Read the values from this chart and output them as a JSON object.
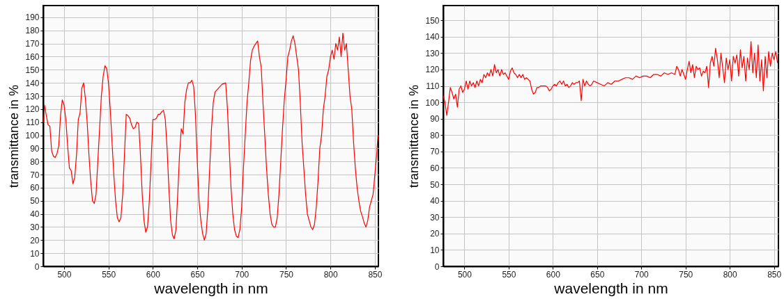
{
  "chart_data": [
    {
      "type": "line",
      "xlabel": "wavelength in nm",
      "ylabel": "transmittance in %",
      "color": "#ff0000",
      "grid": true,
      "xlim": [
        476.5,
        854
      ],
      "ylim": [
        0,
        199
      ],
      "xticks": [
        500,
        550,
        600,
        650,
        700,
        750,
        800,
        850
      ],
      "yticks": [
        0,
        10,
        20,
        30,
        40,
        50,
        60,
        70,
        80,
        90,
        100,
        110,
        120,
        130,
        140,
        150,
        160,
        170,
        180,
        190
      ],
      "x": [
        477,
        478,
        480,
        482,
        484,
        486,
        488,
        490,
        492,
        494,
        496,
        498,
        500,
        502,
        504,
        506,
        508,
        510,
        512,
        514,
        516,
        518,
        520,
        522,
        524,
        526,
        528,
        530,
        532,
        534,
        536,
        538,
        540,
        542,
        544,
        546,
        548,
        550,
        552,
        554,
        556,
        558,
        560,
        562,
        564,
        566,
        568,
        570,
        572,
        574,
        576,
        578,
        580,
        582,
        584,
        586,
        588,
        590,
        592,
        594,
        596,
        598,
        600,
        602,
        604,
        606,
        608,
        610,
        612,
        614,
        616,
        618,
        620,
        622,
        624,
        626,
        628,
        630,
        632,
        634,
        636,
        638,
        640,
        642,
        644,
        646,
        648,
        650,
        652,
        654,
        656,
        658,
        660,
        662,
        664,
        666,
        668,
        670,
        674,
        678,
        682,
        684,
        686,
        688,
        690,
        692,
        694,
        696,
        698,
        700,
        702,
        704,
        706,
        708,
        710,
        712,
        714,
        716,
        718,
        720,
        722,
        724,
        726,
        728,
        730,
        732,
        734,
        736,
        738,
        740,
        742,
        744,
        746,
        748,
        750,
        752,
        754,
        756,
        758,
        760,
        762,
        764,
        766,
        768,
        770,
        772,
        774,
        776,
        778,
        780,
        782,
        784,
        786,
        788,
        790,
        792,
        794,
        796,
        798,
        800,
        802,
        804,
        806,
        808,
        810,
        812,
        814,
        816,
        818,
        820,
        822,
        824,
        826,
        828,
        830,
        832,
        834,
        836,
        838,
        840,
        842,
        844,
        846,
        848,
        850,
        852,
        853.5
      ],
      "values": [
        110,
        123,
        115,
        108,
        107,
        88,
        84,
        83,
        86,
        92,
        115,
        127,
        123,
        112,
        92,
        75,
        73,
        63,
        68,
        85,
        112,
        117,
        136,
        140,
        128,
        110,
        85,
        65,
        50,
        48,
        55,
        80,
        105,
        130,
        145,
        153,
        151,
        140,
        120,
        95,
        70,
        50,
        37,
        34,
        37,
        55,
        85,
        116,
        115,
        113,
        108,
        105,
        106,
        110,
        109,
        85,
        55,
        35,
        26,
        30,
        50,
        80,
        112,
        112,
        113,
        116,
        116,
        118,
        119,
        112,
        90,
        60,
        35,
        24,
        21,
        28,
        55,
        85,
        105,
        101,
        125,
        135,
        140,
        140,
        142,
        137,
        115,
        80,
        50,
        35,
        25,
        20,
        25,
        45,
        75,
        105,
        125,
        133,
        136,
        139,
        140,
        120,
        90,
        60,
        40,
        28,
        23,
        22,
        28,
        45,
        75,
        100,
        125,
        140,
        157,
        165,
        168,
        170,
        172,
        160,
        152,
        125,
        100,
        75,
        55,
        40,
        32,
        30,
        30,
        37,
        55,
        80,
        105,
        127,
        142,
        160,
        165,
        172,
        176,
        170,
        160,
        150,
        125,
        95,
        75,
        55,
        40,
        35,
        30,
        28,
        32,
        45,
        65,
        90,
        100,
        120,
        130,
        145,
        150,
        160,
        165,
        158,
        170,
        165,
        175,
        160,
        178,
        165,
        170,
        150,
        130,
        120,
        95,
        75,
        60,
        50,
        42,
        38,
        33,
        30,
        35,
        45,
        50,
        55,
        70,
        85,
        100
      ]
    },
    {
      "type": "line",
      "xlabel": "wavelength in nm",
      "ylabel": "transmittance in %",
      "color": "#ff0000",
      "grid": true,
      "xlim": [
        476,
        855
      ],
      "ylim": [
        0,
        159
      ],
      "xticks": [
        500,
        550,
        600,
        650,
        700,
        750,
        800,
        850
      ],
      "yticks": [
        0,
        10,
        20,
        30,
        40,
        50,
        60,
        70,
        80,
        90,
        100,
        110,
        120,
        130,
        140,
        150
      ],
      "x": [
        476,
        478,
        480,
        482,
        484,
        486,
        488,
        490,
        492,
        494,
        496,
        498,
        500,
        502,
        504,
        506,
        508,
        510,
        512,
        514,
        516,
        518,
        520,
        522,
        524,
        526,
        528,
        530,
        532,
        534,
        536,
        538,
        540,
        542,
        544,
        546,
        548,
        550,
        552,
        554,
        556,
        558,
        560,
        562,
        564,
        566,
        568,
        570,
        572,
        574,
        576,
        578,
        580,
        582,
        584,
        586,
        588,
        590,
        592,
        594,
        596,
        598,
        600,
        602,
        604,
        606,
        608,
        610,
        612,
        614,
        616,
        618,
        620,
        622,
        624,
        626,
        628,
        630,
        632,
        634,
        636,
        638,
        640,
        642,
        644,
        646,
        650,
        654,
        658,
        662,
        666,
        670,
        674,
        678,
        682,
        686,
        690,
        694,
        698,
        702,
        706,
        710,
        714,
        718,
        722,
        726,
        730,
        734,
        738,
        740,
        742,
        744,
        746,
        748,
        750,
        752,
        754,
        756,
        758,
        760,
        762,
        764,
        766,
        768,
        770,
        772,
        774,
        776,
        778,
        780,
        782,
        784,
        786,
        788,
        790,
        792,
        794,
        796,
        798,
        800,
        802,
        804,
        806,
        808,
        810,
        812,
        814,
        816,
        818,
        820,
        822,
        824,
        826,
        828,
        830,
        832,
        834,
        836,
        838,
        840,
        842,
        844,
        846,
        848,
        850,
        852,
        854
      ],
      "values": [
        104,
        100,
        92,
        100,
        109,
        106,
        102,
        105,
        97,
        108,
        110,
        106,
        108,
        113,
        108,
        113,
        110,
        112,
        109,
        113,
        110,
        114,
        112,
        117,
        115,
        118,
        116,
        120,
        116,
        123,
        118,
        120,
        116,
        120,
        117,
        118,
        116,
        114,
        119,
        121,
        118,
        117,
        115,
        117,
        115,
        117,
        114,
        115,
        114,
        113,
        108,
        105,
        106,
        109,
        109,
        110,
        110,
        110,
        110,
        109,
        107,
        108,
        110,
        111,
        110,
        112,
        113,
        111,
        113,
        110,
        111,
        109,
        110,
        112,
        111,
        112,
        112,
        113,
        101,
        114,
        110,
        113,
        111,
        110,
        111,
        113,
        112,
        111,
        110,
        112,
        111,
        113,
        113,
        114,
        115,
        115,
        114,
        116,
        115,
        116,
        116,
        115,
        117,
        117,
        116,
        118,
        117,
        118,
        117,
        122,
        120,
        116,
        120,
        117,
        114,
        120,
        125,
        118,
        123,
        115,
        122,
        120,
        121,
        116,
        119,
        118,
        122,
        109,
        124,
        128,
        122,
        133,
        126,
        115,
        130,
        121,
        112,
        127,
        120,
        126,
        113,
        128,
        124,
        129,
        116,
        132,
        121,
        128,
        113,
        127,
        120,
        137,
        118,
        130,
        115,
        135,
        113,
        126,
        107,
        128,
        115,
        131,
        122,
        130,
        126,
        131,
        124
      ]
    }
  ]
}
